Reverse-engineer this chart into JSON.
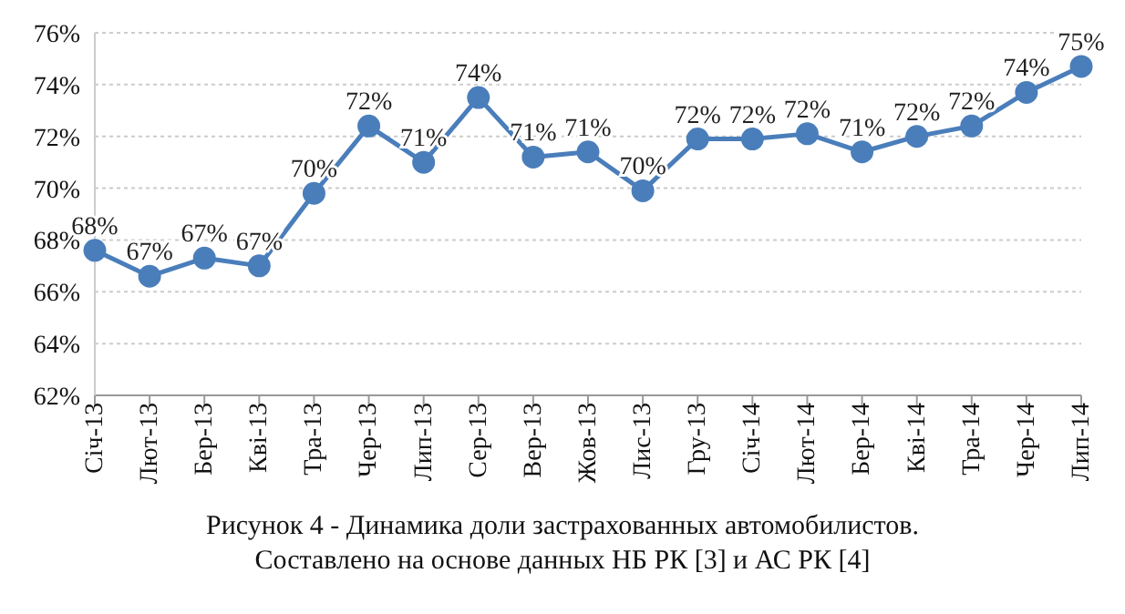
{
  "chart_data": {
    "type": "line",
    "title": "Рисунок 4 - Динамика доли застрахованных автомобилистов.",
    "subtitle": "Составлено на основе данных НБ РК [3] и АС РК [4]",
    "categories": [
      "Січ-13",
      "Лют-13",
      "Бер-13",
      "Кві-13",
      "Тра-13",
      "Чер-13",
      "Лип-13",
      "Сер-13",
      "Вер-13",
      "Жов-13",
      "Лис-13",
      "Гру-13",
      "Січ-14",
      "Лют-14",
      "Бер-14",
      "Кві-14",
      "Тра-14",
      "Чер-14",
      "Лип-14"
    ],
    "series": [
      {
        "color": "#4a7ebb",
        "values": [
          67.6,
          66.6,
          67.3,
          67.0,
          69.8,
          72.4,
          71.0,
          73.5,
          71.2,
          71.4,
          69.9,
          71.9,
          71.9,
          72.1,
          71.4,
          72.0,
          72.4,
          73.7,
          74.7
        ],
        "value_labels": [
          "68%",
          "67%",
          "67%",
          "67%",
          "70%",
          "72%",
          "71%",
          "74%",
          "71%",
          "71%",
          "70%",
          "72%",
          "72%",
          "72%",
          "71%",
          "72%",
          "72%",
          "74%",
          "75%"
        ]
      }
    ],
    "ylim": [
      62,
      76
    ],
    "yticks": [
      {
        "value": 62,
        "label": "62%"
      },
      {
        "value": 64,
        "label": "64%"
      },
      {
        "value": 66,
        "label": "66%"
      },
      {
        "value": 68,
        "label": "68%"
      },
      {
        "value": 70,
        "label": "70%"
      },
      {
        "value": 72,
        "label": "72%"
      },
      {
        "value": 74,
        "label": "74%"
      },
      {
        "value": 76,
        "label": "76%"
      }
    ],
    "grid": "y",
    "marker": "circle",
    "line_style": "solid"
  }
}
